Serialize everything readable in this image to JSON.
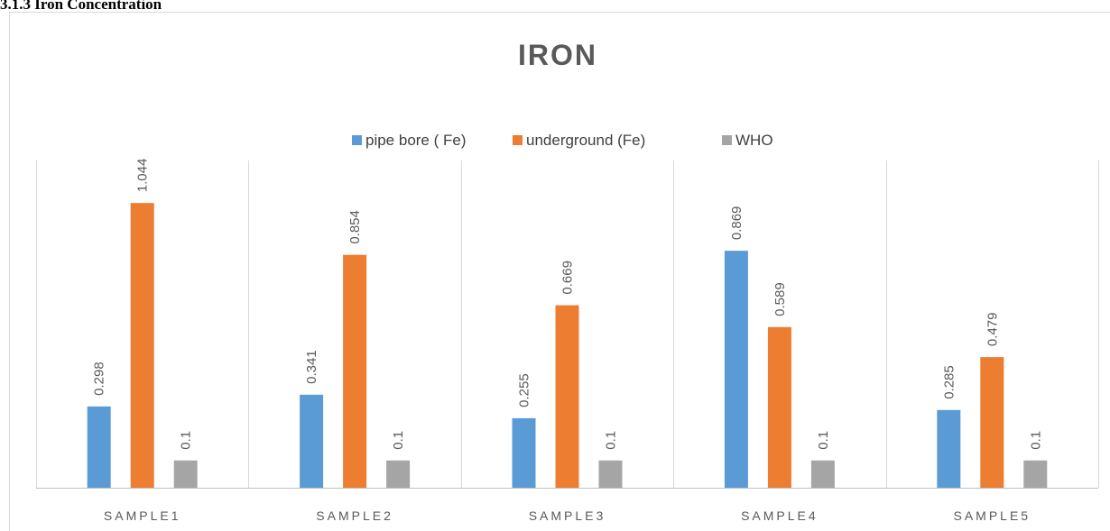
{
  "heading": "3.1.3 Iron Concentration",
  "chart_data": {
    "type": "bar",
    "title": "IRON",
    "categories": [
      "SAMPLE1",
      "SAMPLE2",
      "SAMPLE3",
      "SAMPLE4",
      "SAMPLE5"
    ],
    "series": [
      {
        "name": "pipe bore ( Fe)",
        "color": "#5b9bd5",
        "values": [
          0.298,
          0.341,
          0.255,
          0.869,
          0.285
        ]
      },
      {
        "name": "underground (Fe)",
        "color": "#ed7d31",
        "values": [
          1.044,
          0.854,
          0.669,
          0.589,
          0.479
        ]
      },
      {
        "name": "WHO",
        "color": "#a5a5a5",
        "values": [
          0.1,
          0.1,
          0.1,
          0.1,
          0.1
        ]
      }
    ],
    "ylim": [
      0,
      1.2
    ],
    "legend": "top",
    "data_labels": true
  }
}
